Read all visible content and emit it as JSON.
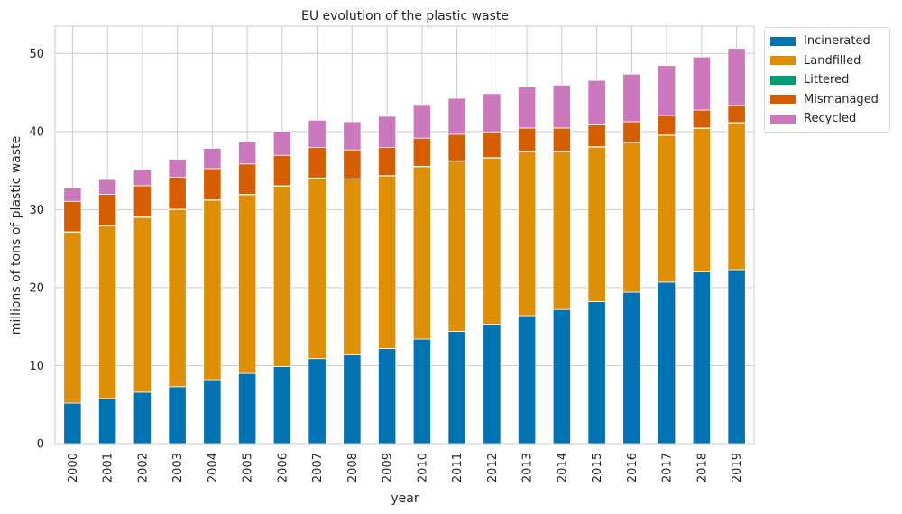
{
  "chart_data": {
    "type": "bar",
    "stacked": true,
    "title": "EU evolution of the plastic waste",
    "xlabel": "year",
    "ylabel": "millions of tons of plastic waste",
    "ylim": [
      0,
      53.5
    ],
    "yticks": [
      0,
      10,
      20,
      30,
      40,
      50
    ],
    "grid": true,
    "legend_position": "outside-top-right",
    "categories": [
      "2000",
      "2001",
      "2002",
      "2003",
      "2004",
      "2005",
      "2006",
      "2007",
      "2008",
      "2009",
      "2010",
      "2011",
      "2012",
      "2013",
      "2014",
      "2015",
      "2016",
      "2017",
      "2018",
      "2019"
    ],
    "series": [
      {
        "name": "Incinerated",
        "color": "#0173b2",
        "values": [
          5.2,
          5.8,
          6.6,
          7.3,
          8.2,
          9.0,
          9.9,
          10.9,
          11.4,
          12.2,
          13.4,
          14.4,
          15.3,
          16.4,
          17.2,
          18.2,
          19.4,
          20.7,
          22.0,
          22.3
        ]
      },
      {
        "name": "Landfilled",
        "color": "#de8f05",
        "values": [
          21.9,
          22.1,
          22.4,
          22.7,
          23.0,
          22.9,
          23.1,
          23.1,
          22.5,
          22.1,
          22.1,
          21.8,
          21.3,
          21.0,
          20.2,
          19.8,
          19.2,
          18.8,
          18.4,
          18.8
        ]
      },
      {
        "name": "Littered",
        "color": "#029e73",
        "values": [
          0.05,
          0.05,
          0.05,
          0.05,
          0.05,
          0.05,
          0.05,
          0.05,
          0.05,
          0.05,
          0.05,
          0.05,
          0.05,
          0.05,
          0.05,
          0.05,
          0.05,
          0.05,
          0.05,
          0.05
        ]
      },
      {
        "name": "Mismanaged",
        "color": "#d55e00",
        "values": [
          3.9,
          4.0,
          4.0,
          4.1,
          4.0,
          3.9,
          3.9,
          3.9,
          3.7,
          3.6,
          3.6,
          3.4,
          3.3,
          3.0,
          3.0,
          2.8,
          2.6,
          2.5,
          2.3,
          2.2
        ]
      },
      {
        "name": "Recycled",
        "color": "#cc78bc",
        "values": [
          1.7,
          1.9,
          2.1,
          2.3,
          2.6,
          2.8,
          3.1,
          3.5,
          3.6,
          4.0,
          4.3,
          4.6,
          4.9,
          5.3,
          5.5,
          5.7,
          6.1,
          6.4,
          6.8,
          7.3
        ]
      }
    ]
  }
}
